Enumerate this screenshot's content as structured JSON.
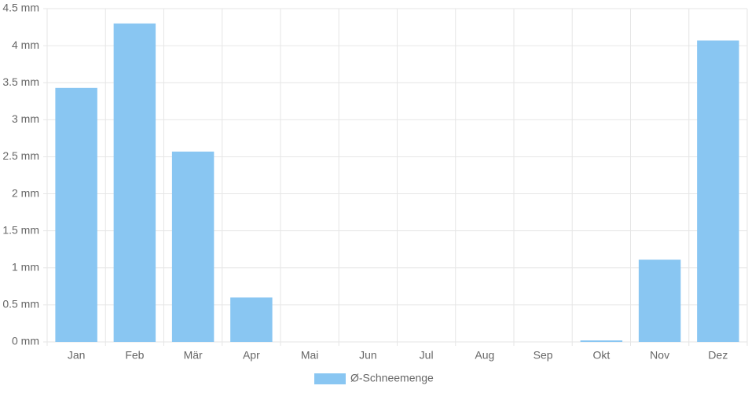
{
  "chart_data": {
    "type": "bar",
    "categories": [
      "Jan",
      "Feb",
      "Mär",
      "Apr",
      "Mai",
      "Jun",
      "Jul",
      "Aug",
      "Sep",
      "Okt",
      "Nov",
      "Dez"
    ],
    "series": [
      {
        "name": "Ø-Schneemenge",
        "color": "#89c6f2",
        "values": [
          3.43,
          4.3,
          2.57,
          0.6,
          0,
          0,
          0,
          0,
          0,
          0.02,
          1.11,
          4.07
        ]
      }
    ],
    "ylim": [
      0,
      4.5
    ],
    "yticks": [
      {
        "value": 0,
        "label": "0 mm"
      },
      {
        "value": 0.5,
        "label": "0.5 mm"
      },
      {
        "value": 1,
        "label": "1 mm"
      },
      {
        "value": 1.5,
        "label": "1.5 mm"
      },
      {
        "value": 2,
        "label": "2 mm"
      },
      {
        "value": 2.5,
        "label": "2.5 mm"
      },
      {
        "value": 3,
        "label": "3 mm"
      },
      {
        "value": 3.5,
        "label": "3.5 mm"
      },
      {
        "value": 4,
        "label": "4 mm"
      },
      {
        "value": 4.5,
        "label": "4.5 mm"
      }
    ],
    "grid": true,
    "legend": "bottom"
  }
}
